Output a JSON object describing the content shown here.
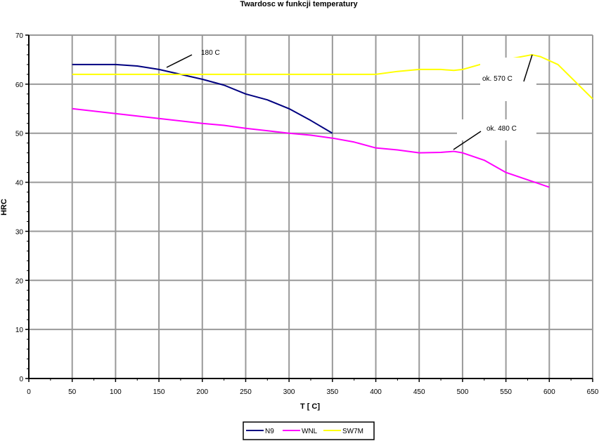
{
  "chart_data": {
    "type": "line",
    "title": "Twardosc w funkcji temperatury",
    "xlabel": "T [ C]",
    "ylabel": "HRC",
    "xlim": [
      0,
      650
    ],
    "ylim": [
      0,
      70
    ],
    "xticks": [
      0,
      50,
      100,
      150,
      200,
      250,
      300,
      350,
      400,
      450,
      500,
      550,
      600,
      650
    ],
    "yticks": [
      0,
      10,
      20,
      30,
      40,
      50,
      60,
      70
    ],
    "grid": true,
    "legend_position": "bottom",
    "series": [
      {
        "name": "N9",
        "color": "#000080",
        "x": [
          50,
          100,
          125,
          150,
          175,
          200,
          225,
          250,
          275,
          300,
          325,
          350
        ],
        "y": [
          64,
          64,
          63.7,
          63,
          62,
          61,
          59.8,
          58,
          56.8,
          55,
          52.6,
          50
        ]
      },
      {
        "name": "WNL",
        "color": "#ff00ff",
        "x": [
          50,
          100,
          150,
          200,
          225,
          250,
          300,
          325,
          350,
          375,
          400,
          425,
          450,
          475,
          490,
          500,
          525,
          550,
          575,
          600
        ],
        "y": [
          55,
          54,
          53,
          52,
          51.6,
          51,
          50,
          49.6,
          49,
          48.2,
          47,
          46.6,
          46,
          46.1,
          46.3,
          46,
          44.5,
          42,
          40.5,
          39
        ]
      },
      {
        "name": "SW7M",
        "color": "#ffff00",
        "x": [
          50,
          100,
          200,
          300,
          400,
          425,
          450,
          475,
          490,
          500,
          520,
          580,
          590,
          610,
          630,
          650
        ],
        "y": [
          62,
          62,
          62,
          62,
          62,
          62.6,
          63,
          63,
          62.8,
          63,
          64,
          66,
          65.6,
          64,
          60.5,
          57
        ]
      }
    ],
    "annotations": [
      {
        "text": "180 C"
      },
      {
        "text": "ok. 570 C"
      },
      {
        "text": "ok. 480 C"
      }
    ]
  }
}
